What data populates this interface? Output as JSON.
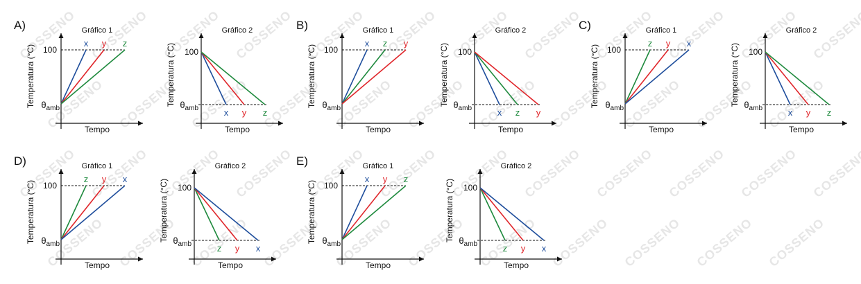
{
  "options": [
    {
      "letter": "A)",
      "graph1": {
        "title": "Gráfico 1",
        "order": [
          "x",
          "y",
          "z"
        ]
      },
      "graph2": {
        "title": "Gráfico 2",
        "order": [
          "x",
          "y",
          "z"
        ]
      }
    },
    {
      "letter": "B)",
      "graph1": {
        "title": "Gráfico 1",
        "order": [
          "x",
          "z",
          "y"
        ]
      },
      "graph2": {
        "title": "Gráfico 2",
        "order": [
          "x",
          "z",
          "y"
        ]
      }
    },
    {
      "letter": "C)",
      "graph1": {
        "title": "Gráfico 1",
        "order": [
          "z",
          "y",
          "x"
        ]
      },
      "graph2": {
        "title": "Gráfico 2",
        "order": [
          "x",
          "y",
          "z"
        ]
      }
    },
    {
      "letter": "D)",
      "graph1": {
        "title": "Gráfico 1",
        "order": [
          "z",
          "y",
          "x"
        ]
      },
      "graph2": {
        "title": "Gráfico 2",
        "order": [
          "z",
          "y",
          "x"
        ]
      }
    },
    {
      "letter": "E)",
      "graph1": {
        "title": "Gráfico 1",
        "order": [
          "x",
          "y",
          "z"
        ]
      },
      "graph2": {
        "title": "Gráfico 2",
        "order": [
          "z",
          "y",
          "x"
        ]
      }
    }
  ],
  "labels": {
    "ylabel": "Temperatura (°C)",
    "xlabel": "Tempo",
    "value100": "100",
    "theta": "θ",
    "amb": "amb"
  },
  "series_colors": {
    "x": "#1f4e9c",
    "y": "#e0262b",
    "z": "#1f8a3e"
  },
  "watermark_text": "COSSENO"
}
